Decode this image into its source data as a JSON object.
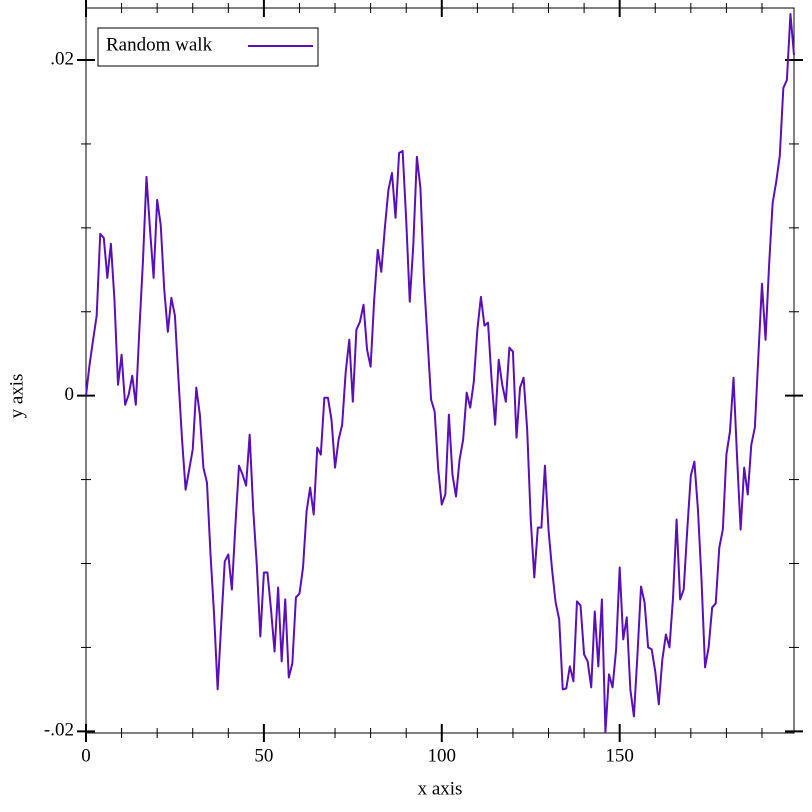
{
  "chart_data": {
    "type": "line",
    "xlabel": "x axis",
    "ylabel": "y axis",
    "x": [
      0,
      1,
      2,
      3,
      4,
      5,
      6,
      7,
      8,
      9,
      10,
      11,
      12,
      13,
      14,
      15,
      16,
      17,
      18,
      19,
      20,
      21,
      22,
      23,
      24,
      25,
      26,
      27,
      28,
      29,
      30,
      31,
      32,
      33,
      34,
      35,
      36,
      37,
      38,
      39,
      40,
      41,
      42,
      43,
      44,
      45,
      46,
      47,
      48,
      49,
      50,
      51,
      52,
      53,
      54,
      55,
      56,
      57,
      58,
      59,
      60,
      61,
      62,
      63,
      64,
      65,
      66,
      67,
      68,
      69,
      70,
      71,
      72,
      73,
      74,
      75,
      76,
      77,
      78,
      79,
      80,
      81,
      82,
      83,
      84,
      85,
      86,
      87,
      88,
      89,
      90,
      91,
      92,
      93,
      94,
      95,
      96,
      97,
      98,
      99,
      100,
      101,
      102,
      103,
      104,
      105,
      106,
      107,
      108,
      109,
      110,
      111,
      112,
      113,
      114,
      115,
      116,
      117,
      118,
      119,
      120,
      121,
      122,
      123,
      124,
      125,
      126,
      127,
      128,
      129,
      130,
      131,
      132,
      133,
      134,
      135,
      136,
      137,
      138,
      139,
      140,
      141,
      142,
      143,
      144,
      145,
      146,
      147,
      148,
      149,
      150,
      151,
      152,
      153,
      154,
      155,
      156,
      157,
      158,
      159,
      160,
      161,
      162,
      163,
      164,
      165,
      166,
      167,
      168,
      169,
      170,
      171,
      172,
      173,
      174,
      175,
      176,
      177,
      178,
      179,
      180,
      181,
      182,
      183,
      184,
      185,
      186,
      187,
      188,
      189,
      190,
      191,
      192,
      193,
      194,
      195,
      196,
      197,
      198,
      199
    ],
    "series": [
      {
        "name": "Random walk",
        "color": "#5a10b8",
        "values": [
          0,
          0.00185,
          0.00333,
          0.00476,
          0.00964,
          0.0094,
          0.00702,
          0.00905,
          0.00571,
          0.00065,
          0.00244,
          -0.00054,
          6e-05,
          0.00119,
          -0.00054,
          0.00393,
          0.00798,
          0.01304,
          0.00988,
          0.00702,
          0.01167,
          0.01018,
          0.00631,
          0.00381,
          0.00583,
          0.00476,
          0.00095,
          -0.00262,
          -0.0056,
          -0.0044,
          -0.00321,
          0.00048,
          -0.00113,
          -0.00429,
          -0.00518,
          -0.00946,
          -0.01304,
          -0.0175,
          -0.01363,
          -0.00988,
          -0.00946,
          -0.01155,
          -0.00768,
          -0.00417,
          -0.0047,
          -0.00536,
          -0.00232,
          -0.00679,
          -0.01006,
          -0.01435,
          -0.01054,
          -0.01054,
          -0.01274,
          -0.01524,
          -0.01143,
          -0.01583,
          -0.01214,
          -0.01679,
          -0.01595,
          -0.01202,
          -0.01179,
          -0.01024,
          -0.0069,
          -0.00548,
          -0.00708,
          -0.0031,
          -0.00351,
          -0.00012,
          -0.00012,
          -0.00143,
          -0.00429,
          -0.00262,
          -0.00173,
          0.00143,
          0.00333,
          -0.00036,
          0.00393,
          0.0044,
          0.00542,
          0.00274,
          0.00173,
          0.00571,
          0.00869,
          0.00738,
          0.01,
          0.01226,
          0.01327,
          0.0106,
          0.01446,
          0.01458,
          0.01048,
          0.0056,
          0.00899,
          0.01423,
          0.01238,
          0.0069,
          0.00333,
          -0.00024,
          -0.00095,
          -0.0044,
          -0.00649,
          -0.00589,
          -0.00113,
          -0.0047,
          -0.00601,
          -0.00381,
          -0.00262,
          0.00018,
          -0.00071,
          0.00083,
          0.00393,
          0.00589,
          0.00417,
          0.00435,
          0.00095,
          -0.00173,
          0.00214,
          0.00065,
          -0.00036,
          0.00286,
          0.00262,
          -0.0025,
          0.00048,
          0.00107,
          -0.00202,
          -0.00738,
          -0.01083,
          -0.00786,
          -0.00786,
          -0.00417,
          -0.00798,
          -0.01036,
          -0.01232,
          -0.01333,
          -0.0175,
          -0.01744,
          -0.01613,
          -0.01702,
          -0.01226,
          -0.0125,
          -0.01542,
          -0.01583,
          -0.01738,
          -0.01286,
          -0.01613,
          -0.01214,
          -0.02006,
          -0.01661,
          -0.01738,
          -0.01512,
          -0.01024,
          -0.01452,
          -0.01321,
          -0.0175,
          -0.01911,
          -0.01542,
          -0.01137,
          -0.01232,
          -0.015,
          -0.01512,
          -0.01643,
          -0.01839,
          -0.01571,
          -0.01423,
          -0.015,
          -0.01202,
          -0.00738,
          -0.01214,
          -0.01155,
          -0.00798,
          -0.00476,
          -0.00393,
          -0.00679,
          -0.01095,
          -0.01619,
          -0.015,
          -0.01262,
          -0.01238,
          -0.00905,
          -0.00798,
          -0.00351,
          -0.00214,
          0.00107,
          -0.00369,
          -0.00798,
          -0.00429,
          -0.00589,
          -0.00292,
          -0.0019,
          0.00244,
          0.00667,
          0.00333,
          0.0078,
          0.01149,
          0.01274,
          0.01429,
          0.01833,
          0.01881,
          0.02274,
          0.0203
        ]
      }
    ],
    "xlim": [
      0,
      199
    ],
    "ylim": [
      -0.0201,
      0.0231
    ],
    "xticks": [
      0,
      50,
      100,
      150
    ],
    "xminorticks": [
      10,
      20,
      30,
      40,
      60,
      70,
      80,
      90,
      110,
      120,
      130,
      140,
      160,
      170,
      180,
      190
    ],
    "yticks": [
      {
        "value": -0.02,
        "label": "-.02"
      },
      0,
      {
        "value": 0.02,
        "label": ".02"
      }
    ],
    "yminorticks": [
      -0.015,
      -0.01,
      -0.005,
      0.005,
      0.01,
      0.015
    ],
    "legend": "top-left"
  }
}
